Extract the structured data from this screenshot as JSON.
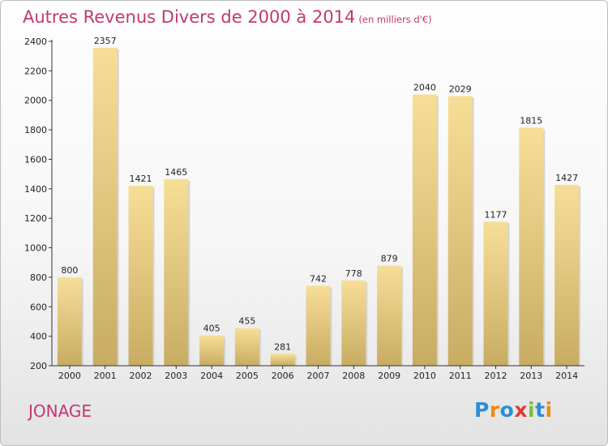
{
  "header": {
    "title": "Autres Revenus Divers de 2000 à 2014",
    "unit": "(en milliers d'€)"
  },
  "footer": {
    "city": "JONAGE",
    "brand": "Proxiti"
  },
  "colors": {
    "title": "#c23872",
    "bar_top": "#f7de97",
    "bar_bottom": "#c8ac63",
    "brand_blue": "#2a8fd6",
    "brand_orange": "#f08a12",
    "brand_green": "#7cbf3a",
    "brand_red": "#e03a3a"
  },
  "chart_data": {
    "type": "bar",
    "title": "Autres Revenus Divers de 2000 à 2014",
    "subtitle": "(en milliers d'€)",
    "xlabel": "",
    "ylabel": "",
    "categories": [
      "2000",
      "2001",
      "2002",
      "2003",
      "2004",
      "2005",
      "2006",
      "2007",
      "2008",
      "2009",
      "2010",
      "2011",
      "2012",
      "2013",
      "2014"
    ],
    "values": [
      800,
      2357,
      1421,
      1465,
      405,
      455,
      281,
      742,
      778,
      879,
      2040,
      2029,
      1177,
      1815,
      1427
    ],
    "ylim": [
      200,
      2400
    ],
    "yticks": [
      200,
      400,
      600,
      800,
      1000,
      1200,
      1400,
      1600,
      1800,
      2000,
      2200,
      2400
    ],
    "grid": false,
    "legend": "none"
  }
}
